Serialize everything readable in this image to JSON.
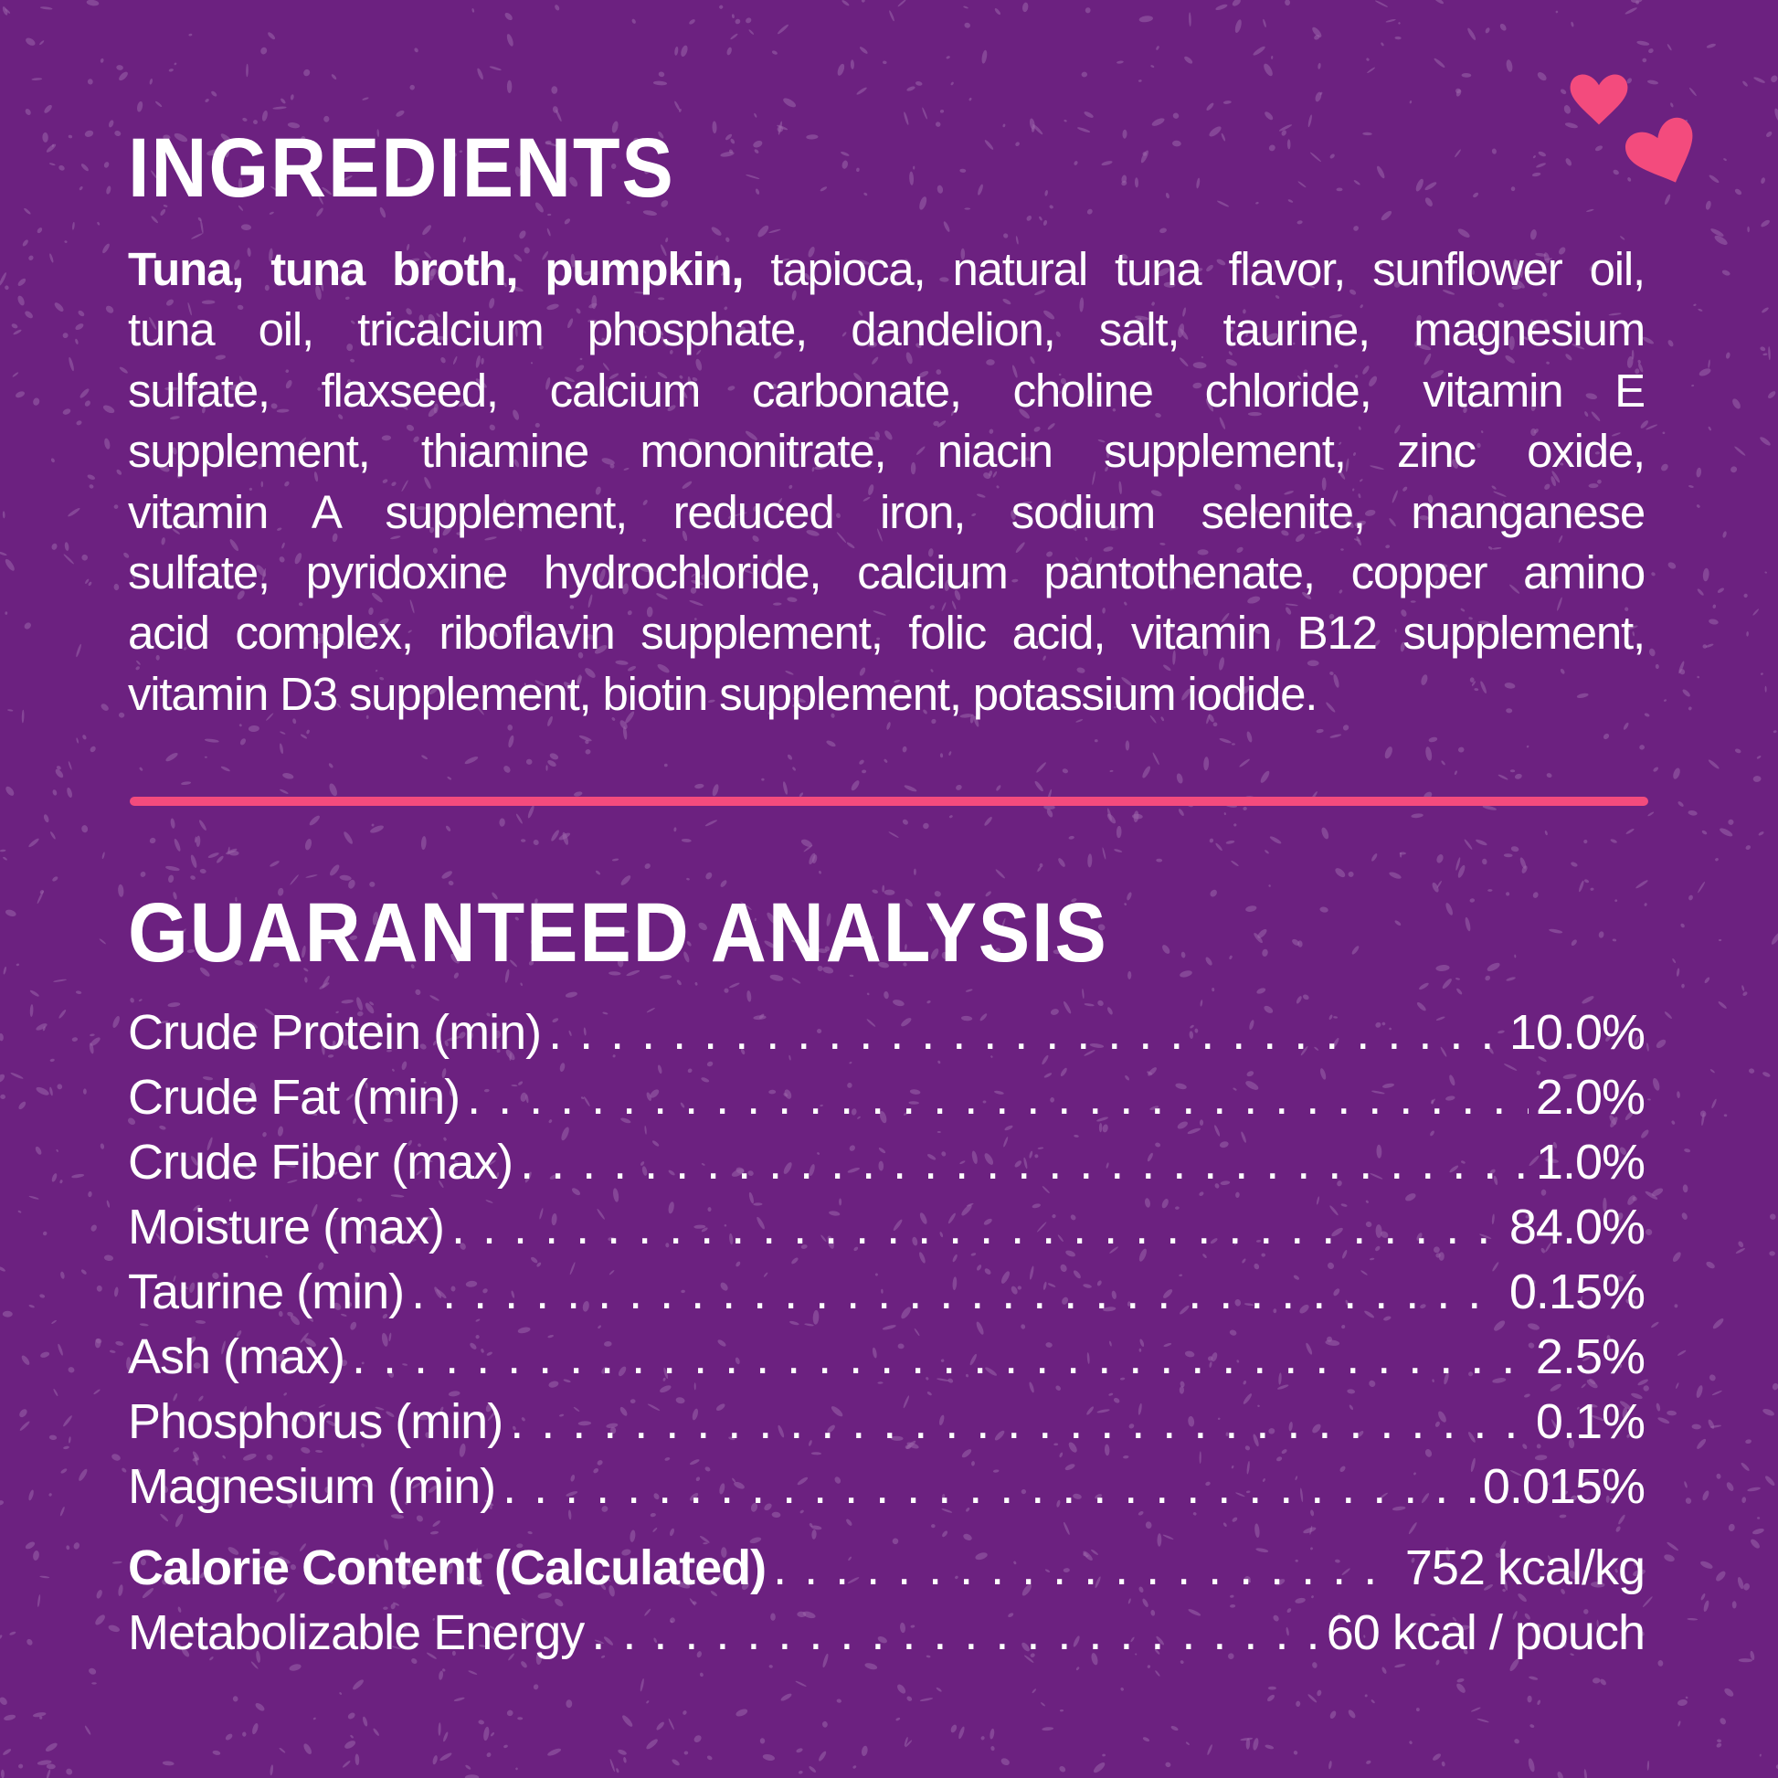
{
  "colors": {
    "background": "#6c2180",
    "accent": "#f34b7d",
    "text": "#ffffff"
  },
  "decor": {
    "icons": [
      "heart-icon",
      "heart-icon"
    ]
  },
  "ingredients": {
    "title": "INGREDIENTS",
    "bold_lead": "Tuna, tuna broth, pumpkin,",
    "lines": [
      " tapioca, natural tuna flavor, sunflower oil,",
      "tuna oil, tricalcium phosphate, dandelion, salt, taurine, magnesium",
      "sulfate, flaxseed, calcium carbonate, choline chloride, vitamin E",
      "supplement, thiamine mononitrate, niacin supplement, zinc oxide,",
      "vitamin A supplement, reduced iron, sodium selenite, manganese",
      "sulfate, pyridoxine hydrochloride, calcium pantothenate, copper amino",
      "acid complex, riboflavin supplement, folic acid, vitamin B12 supplement,",
      "vitamin D3 supplement, biotin supplement, potassium iodide."
    ]
  },
  "analysis": {
    "title": "GUARANTEED ANALYSIS",
    "rows": [
      {
        "label": "Crude Protein (min)",
        "value": "10.0%"
      },
      {
        "label": "Crude Fat (min)",
        "value": "2.0%"
      },
      {
        "label": "Crude Fiber (max)",
        "value": "1.0%"
      },
      {
        "label": "Moisture (max)",
        "value": "84.0%"
      },
      {
        "label": "Taurine (min)",
        "value": "0.15%"
      },
      {
        "label": "Ash (max)",
        "value": "2.5%"
      },
      {
        "label": "Phosphorus (min)",
        "value": "0.1%"
      },
      {
        "label": "Magnesium (min)",
        "value": "0.015%"
      }
    ],
    "calorie": {
      "label": "Calorie Content (Calculated)",
      "value": "752 kcal/kg"
    },
    "energy": {
      "label": "Metabolizable Energy",
      "value": "60 kcal / pouch"
    }
  }
}
